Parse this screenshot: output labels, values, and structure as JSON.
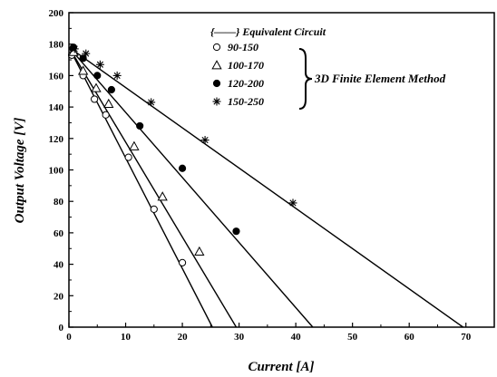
{
  "chart_data": {
    "type": "scatter",
    "xlabel": "Current [A]",
    "ylabel": "Output Voltage [V]",
    "xlim": [
      0,
      75
    ],
    "ylim": [
      0,
      200
    ],
    "x_ticks": [
      "0",
      "10",
      "20",
      "30",
      "40",
      "50",
      "60",
      "70"
    ],
    "y_ticks": [
      "0",
      "20",
      "40",
      "60",
      "80",
      "100",
      "120",
      "140",
      "160",
      "180",
      "200"
    ],
    "legend": {
      "line_entry": "{——} Equivalent Circuit",
      "group_label": "3D Finite Element Method",
      "entries": [
        "90-150",
        "100-170",
        "120-200",
        "150-250"
      ]
    },
    "series": [
      {
        "name": "90-150",
        "marker": "open-circle",
        "line": [
          [
            0,
            178
          ],
          [
            25.3,
            0
          ]
        ],
        "points": [
          [
            0.5,
            173
          ],
          [
            2.5,
            160
          ],
          [
            4.5,
            145
          ],
          [
            6.5,
            135
          ],
          [
            10.5,
            108
          ],
          [
            15,
            75
          ],
          [
            20,
            41
          ]
        ]
      },
      {
        "name": "100-170",
        "marker": "open-triangle",
        "line": [
          [
            0,
            178
          ],
          [
            29.5,
            0
          ]
        ],
        "points": [
          [
            0.8,
            175
          ],
          [
            2.5,
            163
          ],
          [
            4.8,
            152
          ],
          [
            7,
            142
          ],
          [
            11.5,
            115
          ],
          [
            16.5,
            83
          ],
          [
            23,
            48
          ]
        ]
      },
      {
        "name": "120-200",
        "marker": "filled-circle",
        "line": [
          [
            0,
            178
          ],
          [
            43,
            0
          ]
        ],
        "points": [
          [
            0.8,
            178
          ],
          [
            2.5,
            171
          ],
          [
            5,
            160
          ],
          [
            7.5,
            151
          ],
          [
            12.5,
            128
          ],
          [
            20,
            101
          ],
          [
            29.5,
            61
          ]
        ]
      },
      {
        "name": "150-250",
        "marker": "asterisk",
        "line": [
          [
            0,
            178
          ],
          [
            69.5,
            0
          ]
        ],
        "points": [
          [
            1,
            177
          ],
          [
            3,
            174
          ],
          [
            5.5,
            167
          ],
          [
            8.5,
            160
          ],
          [
            14.5,
            143
          ],
          [
            24,
            119
          ],
          [
            39.5,
            79
          ]
        ]
      }
    ]
  }
}
